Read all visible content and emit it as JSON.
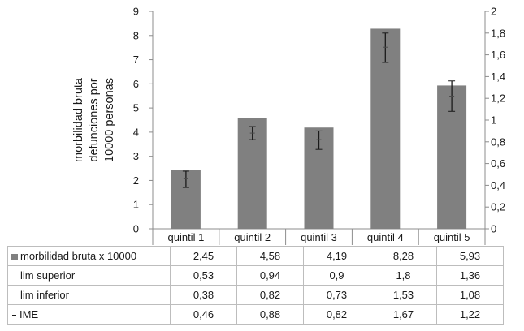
{
  "chart_data": {
    "type": "bar",
    "categories": [
      "quintil 1",
      "quintil 2",
      "quintil 3",
      "quintil 4",
      "quintil 5"
    ],
    "series": [
      {
        "name": "morbilidad bruta x 10000",
        "values": [
          2.45,
          4.58,
          4.19,
          8.28,
          5.93
        ],
        "axis": "left",
        "kind": "bar",
        "color": "#808080"
      },
      {
        "name": "lim superior",
        "values": [
          0.53,
          0.94,
          0.9,
          1.8,
          1.36
        ],
        "axis": "right",
        "kind": "error-high"
      },
      {
        "name": "lim inferior",
        "values": [
          0.38,
          0.82,
          0.73,
          1.53,
          1.08
        ],
        "axis": "right",
        "kind": "error-low"
      },
      {
        "name": "IME",
        "values": [
          0.46,
          0.88,
          0.82,
          1.67,
          1.22
        ],
        "axis": "right",
        "kind": "marker"
      }
    ],
    "ylabel": [
      "morbilidad bruta",
      "defunciones por",
      "10000 personas"
    ],
    "ylim": [
      0,
      9
    ],
    "y2lim": [
      0,
      2
    ],
    "yticks": [
      "0",
      "1",
      "2",
      "3",
      "4",
      "5",
      "6",
      "7",
      "8",
      "9"
    ],
    "y2ticks": [
      "0",
      "0,2",
      "0,4",
      "0,6",
      "0,8",
      "1",
      "1,2",
      "1,4",
      "1,6",
      "1,8",
      "2"
    ],
    "grid": false,
    "legend": "data table below chart"
  },
  "table": {
    "rows": [
      {
        "label": "morbilidad bruta x 10000",
        "key": "box",
        "cells": [
          "2,45",
          "4,58",
          "4,19",
          "8,28",
          "5,93"
        ]
      },
      {
        "label": "lim superior",
        "key": "none",
        "cells": [
          "0,53",
          "0,94",
          "0,9",
          "1,8",
          "1,36"
        ]
      },
      {
        "label": "lim inferior",
        "key": "none",
        "cells": [
          "0,38",
          "0,82",
          "0,73",
          "1,53",
          "1,08"
        ]
      },
      {
        "label": "IME",
        "key": "dash",
        "cells": [
          "0,46",
          "0,88",
          "0,82",
          "1,67",
          "1,22"
        ]
      }
    ]
  },
  "colors": {
    "bar": "#808080",
    "axis": "#8c8c8c",
    "errorbar": "#1a1a1a",
    "border": "#bdbdbd"
  }
}
